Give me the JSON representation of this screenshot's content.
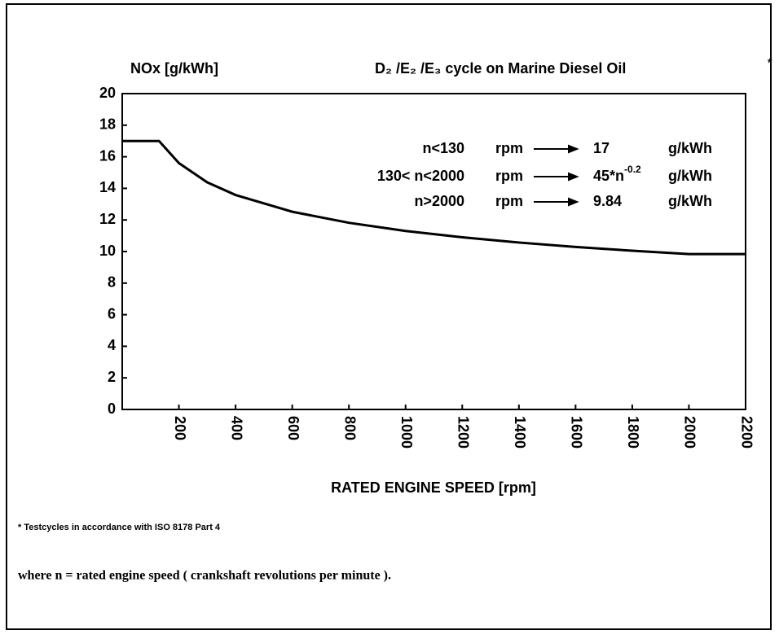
{
  "chart_data": {
    "type": "line",
    "y_axis_label": "NOx [g/kWh]",
    "title": "D₂ /E₂ /E₃  cycle on Marine Diesel Oil",
    "title_mark": "*",
    "x_axis_label": "RATED ENGINE SPEED [rpm]",
    "x": [
      0,
      130,
      200,
      300,
      400,
      600,
      800,
      1000,
      1200,
      1400,
      1600,
      1800,
      2000,
      2200
    ],
    "values": [
      17,
      17,
      15.6,
      14.38,
      13.58,
      12.52,
      11.82,
      11.3,
      10.9,
      10.57,
      10.29,
      10.05,
      9.84,
      9.84
    ],
    "color": "#000000",
    "xlim": [
      0,
      2200
    ],
    "xticks": [
      200,
      400,
      600,
      800,
      1000,
      1200,
      1400,
      1600,
      1800,
      2000,
      2200
    ],
    "ylim": [
      0,
      20
    ],
    "yticks": [
      0,
      2,
      4,
      6,
      8,
      10,
      12,
      14,
      16,
      18,
      20
    ],
    "annotations": [
      {
        "condition": "n<130",
        "unit": "rpm",
        "result": "17",
        "result_unit": "g/kWh"
      },
      {
        "condition": "130< n<2000",
        "unit": "rpm",
        "result": "45*n",
        "result_sup": "-0.2",
        "result_unit": "g/kWh"
      },
      {
        "condition": "n>2000",
        "unit": "rpm",
        "result": "9.84",
        "result_unit": "g/kWh"
      }
    ],
    "footnote": "* Testcycles in accordance with ISO 8178 Part 4",
    "note": "where n = rated engine speed ( crankshaft revolutions per minute )."
  }
}
